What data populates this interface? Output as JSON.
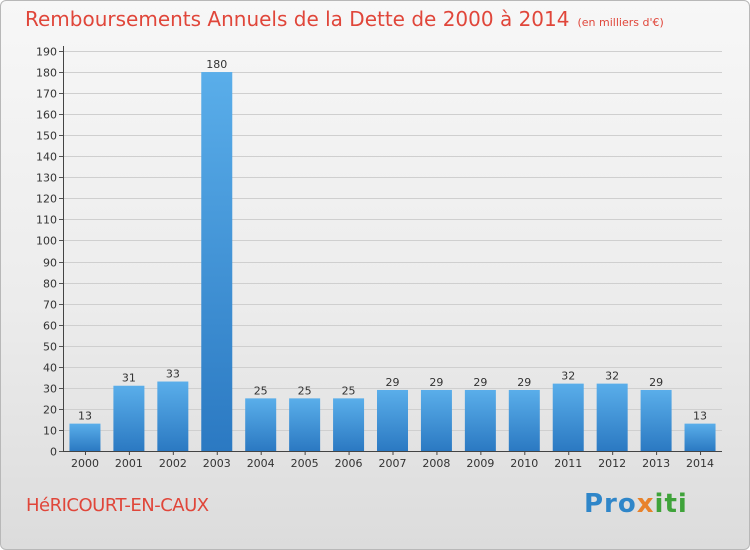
{
  "chart_data": {
    "type": "bar",
    "title": "Remboursements Annuels de la Dette de 2000 à 2014",
    "unit_note": "(en milliers d'€)",
    "categories": [
      "2000",
      "2001",
      "2002",
      "2003",
      "2004",
      "2005",
      "2006",
      "2007",
      "2008",
      "2009",
      "2010",
      "2011",
      "2012",
      "2013",
      "2014"
    ],
    "values": [
      13,
      31,
      33,
      180,
      25,
      25,
      25,
      29,
      29,
      29,
      29,
      32,
      32,
      29,
      13
    ],
    "ylim": [
      0,
      190
    ],
    "yticks": [
      0,
      10,
      20,
      30,
      40,
      50,
      60,
      70,
      80,
      90,
      100,
      110,
      120,
      130,
      140,
      150,
      160,
      170,
      180,
      190
    ],
    "xlabel": "",
    "ylabel": "",
    "grid": true,
    "bar_color_top": "#5aaeea",
    "bar_color_bottom": "#2b79c2"
  },
  "footer": {
    "city": "HéRICOURT-EN-CAUX",
    "brand_parts": [
      "Pro",
      "x",
      "iti"
    ]
  }
}
